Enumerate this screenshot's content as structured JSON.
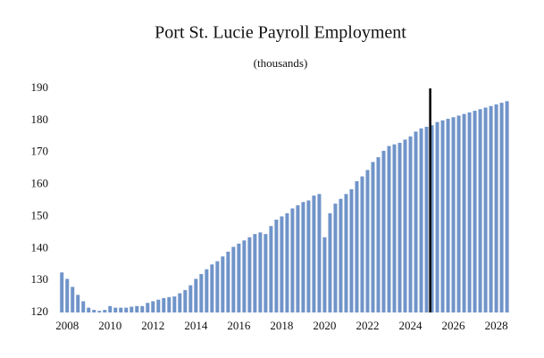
{
  "chart_data": {
    "type": "bar",
    "title": "Port St. Lucie Payroll Employment",
    "subtitle": "(thousands)",
    "x": [
      2007.75,
      2008,
      2008.25,
      2008.5,
      2008.75,
      2009,
      2009.25,
      2009.5,
      2009.75,
      2010,
      2010.25,
      2010.5,
      2010.75,
      2011,
      2011.25,
      2011.5,
      2011.75,
      2012,
      2012.25,
      2012.5,
      2012.75,
      2013,
      2013.25,
      2013.5,
      2013.75,
      2014,
      2014.25,
      2014.5,
      2014.75,
      2015,
      2015.25,
      2015.5,
      2015.75,
      2016,
      2016.25,
      2016.5,
      2016.75,
      2017,
      2017.25,
      2017.5,
      2017.75,
      2018,
      2018.25,
      2018.5,
      2018.75,
      2019,
      2019.25,
      2019.5,
      2019.75,
      2020,
      2020.25,
      2020.5,
      2020.75,
      2021,
      2021.25,
      2021.5,
      2021.75,
      2022,
      2022.25,
      2022.5,
      2022.75,
      2023,
      2023.25,
      2023.5,
      2023.75,
      2024,
      2024.25,
      2024.5,
      2024.75,
      2025,
      2025.25,
      2025.5,
      2025.75,
      2026,
      2026.25,
      2026.5,
      2026.75,
      2027,
      2027.25,
      2027.5,
      2027.75,
      2028,
      2028.25,
      2028.5
    ],
    "values": [
      132.5,
      130.5,
      128,
      125.5,
      123.5,
      121.5,
      120.8,
      120.5,
      120.8,
      122,
      121.5,
      121.5,
      121.5,
      121.8,
      122,
      122,
      123,
      123.5,
      124,
      124.5,
      124.8,
      125,
      126,
      127,
      128.5,
      130.5,
      132,
      133.5,
      135,
      136,
      137.5,
      139,
      140.5,
      141.5,
      142.5,
      143.5,
      144.5,
      145,
      144.5,
      147,
      149,
      150,
      151,
      152.5,
      153.5,
      154.5,
      155,
      156.5,
      157,
      143.5,
      151,
      154,
      155.5,
      157,
      158.5,
      161,
      162.5,
      164.5,
      167,
      168.5,
      170.5,
      172,
      172.5,
      173,
      174,
      175,
      176.5,
      177.5,
      178,
      178.5,
      179.5,
      180,
      180.5,
      181,
      181.5,
      182,
      182.5,
      183,
      183.5,
      184,
      184.5,
      185,
      185.5,
      186
    ],
    "color": "#7094c9",
    "xlim": [
      2007.45,
      2028.6
    ],
    "xticks": [
      2008,
      2010,
      2012,
      2014,
      2016,
      2018,
      2020,
      2022,
      2024,
      2026,
      2028
    ],
    "ylim": [
      120,
      190
    ],
    "yticks": [
      120,
      130,
      140,
      150,
      160,
      170,
      180,
      190
    ],
    "vline_x": 2024.92,
    "vline_color": "#000000",
    "grid": false
  }
}
